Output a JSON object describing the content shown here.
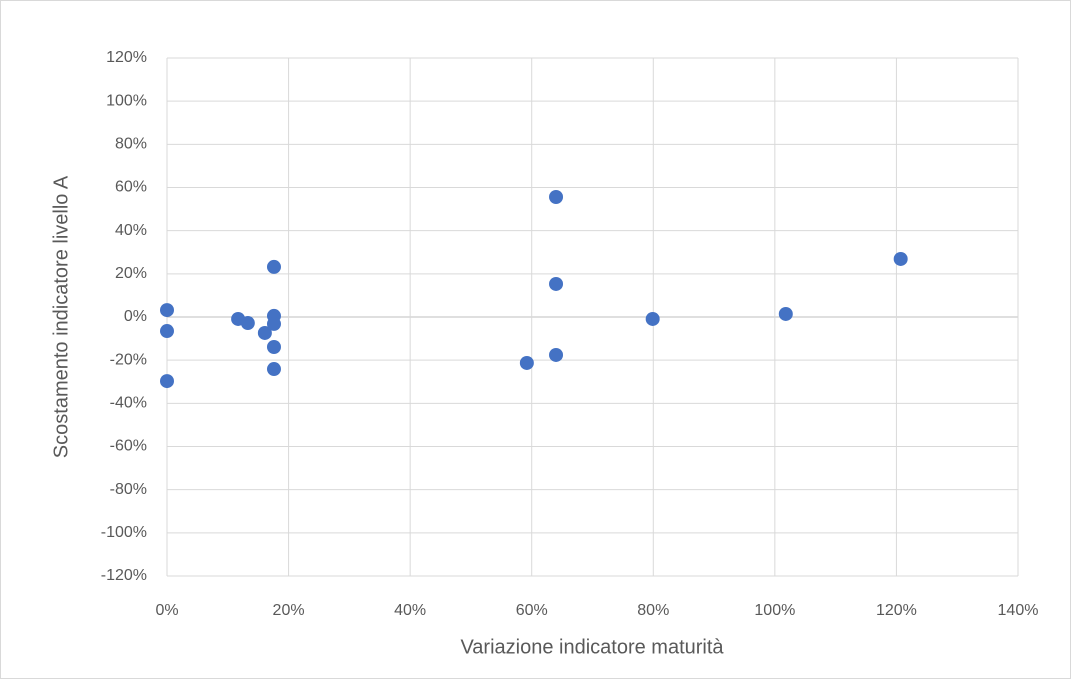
{
  "chart_data": {
    "type": "scatter",
    "x_label": "Variazione indicatore maturità",
    "y_label": "Scostamento indicatore livello A",
    "series": [
      {
        "color": "#4472c4",
        "x": [
          0,
          0,
          0,
          11.7,
          13.3,
          16.1,
          17.6,
          17.6,
          17.6,
          17.6,
          17.6,
          59.2,
          64.0,
          64.0,
          64.0,
          79.9,
          101.8,
          120.7
        ],
        "values": [
          3.2,
          -6.5,
          -29.7,
          -0.9,
          -2.8,
          -7.4,
          23.2,
          0.5,
          -3.2,
          -13.9,
          -24.1,
          -21.3,
          55.6,
          15.3,
          -17.6,
          -0.9,
          1.4,
          26.9
        ]
      }
    ],
    "xlim": [
      0,
      140
    ],
    "xticks": [
      {
        "value": 0,
        "label": "0%"
      },
      {
        "value": 20,
        "label": "20%"
      },
      {
        "value": 40,
        "label": "40%"
      },
      {
        "value": 60,
        "label": "60%"
      },
      {
        "value": 80,
        "label": "80%"
      },
      {
        "value": 100,
        "label": "100%"
      },
      {
        "value": 120,
        "label": "120%"
      },
      {
        "value": 140,
        "label": "140%"
      }
    ],
    "ylim": [
      -120,
      120
    ],
    "yticks": [
      {
        "value": -120,
        "label": "-120%"
      },
      {
        "value": -100,
        "label": "-100%"
      },
      {
        "value": -80,
        "label": "-80%"
      },
      {
        "value": -60,
        "label": "-60%"
      },
      {
        "value": -40,
        "label": "-40%"
      },
      {
        "value": -20,
        "label": "-20%"
      },
      {
        "value": 0,
        "label": "0%"
      },
      {
        "value": 20,
        "label": "20%"
      },
      {
        "value": 40,
        "label": "40%"
      },
      {
        "value": 60,
        "label": "60%"
      },
      {
        "value": 80,
        "label": "80%"
      },
      {
        "value": 100,
        "label": "100%"
      },
      {
        "value": 120,
        "label": "120%"
      }
    ],
    "grid": true
  }
}
